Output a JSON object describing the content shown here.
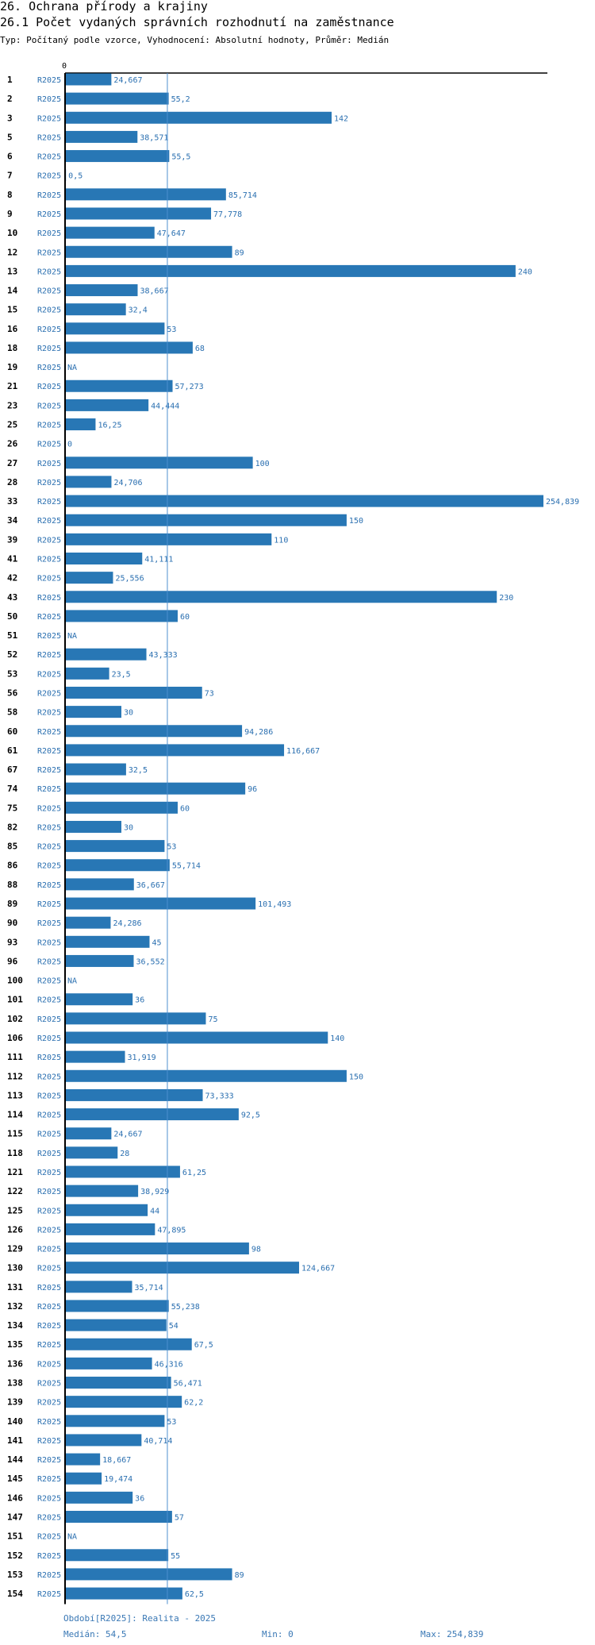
{
  "header": {
    "title": "26. Ochrana přírody a krajiny",
    "subtitle": "26.1 Počet vydaných správních rozhodnutí na zaměstnance",
    "type_line": "Typ: Počítaný podle vzorce, Vyhodnocení: Absolutní hodnoty, Průměr: Medián"
  },
  "chart_data": {
    "type": "bar",
    "orientation": "horizontal",
    "title": "26.1 Počet vydaných správních rozhodnutí na zaměstnance",
    "axis_zero_label": "0",
    "xlim": [
      0,
      254.839
    ],
    "median": 54.5,
    "series_label": "R2025",
    "colors": {
      "bar": "#2877b5",
      "label": "#2a6fb0",
      "median_line": "#4d8fcf"
    },
    "rows": [
      {
        "id": "1",
        "value": 24.667,
        "label": "24,667"
      },
      {
        "id": "2",
        "value": 55.2,
        "label": "55,2"
      },
      {
        "id": "3",
        "value": 142,
        "label": "142"
      },
      {
        "id": "5",
        "value": 38.571,
        "label": "38,571"
      },
      {
        "id": "6",
        "value": 55.5,
        "label": "55,5"
      },
      {
        "id": "7",
        "value": 0.5,
        "label": "0,5"
      },
      {
        "id": "8",
        "value": 85.714,
        "label": "85,714"
      },
      {
        "id": "9",
        "value": 77.778,
        "label": "77,778"
      },
      {
        "id": "10",
        "value": 47.647,
        "label": "47,647"
      },
      {
        "id": "12",
        "value": 89,
        "label": "89"
      },
      {
        "id": "13",
        "value": 240,
        "label": "240"
      },
      {
        "id": "14",
        "value": 38.667,
        "label": "38,667"
      },
      {
        "id": "15",
        "value": 32.4,
        "label": "32,4"
      },
      {
        "id": "16",
        "value": 53,
        "label": "53"
      },
      {
        "id": "18",
        "value": 68,
        "label": "68"
      },
      {
        "id": "19",
        "value": null,
        "label": "NA"
      },
      {
        "id": "21",
        "value": 57.273,
        "label": "57,273"
      },
      {
        "id": "23",
        "value": 44.444,
        "label": "44,444"
      },
      {
        "id": "25",
        "value": 16.25,
        "label": "16,25"
      },
      {
        "id": "26",
        "value": 0,
        "label": "0"
      },
      {
        "id": "27",
        "value": 100,
        "label": "100"
      },
      {
        "id": "28",
        "value": 24.706,
        "label": "24,706"
      },
      {
        "id": "33",
        "value": 254.839,
        "label": "254,839"
      },
      {
        "id": "34",
        "value": 150,
        "label": "150"
      },
      {
        "id": "39",
        "value": 110,
        "label": "110"
      },
      {
        "id": "41",
        "value": 41.111,
        "label": "41,111"
      },
      {
        "id": "42",
        "value": 25.556,
        "label": "25,556"
      },
      {
        "id": "43",
        "value": 230,
        "label": "230"
      },
      {
        "id": "50",
        "value": 60,
        "label": "60"
      },
      {
        "id": "51",
        "value": null,
        "label": "NA"
      },
      {
        "id": "52",
        "value": 43.333,
        "label": "43,333"
      },
      {
        "id": "53",
        "value": 23.5,
        "label": "23,5"
      },
      {
        "id": "56",
        "value": 73,
        "label": "73"
      },
      {
        "id": "58",
        "value": 30,
        "label": "30"
      },
      {
        "id": "60",
        "value": 94.286,
        "label": "94,286"
      },
      {
        "id": "61",
        "value": 116.667,
        "label": "116,667"
      },
      {
        "id": "67",
        "value": 32.5,
        "label": "32,5"
      },
      {
        "id": "74",
        "value": 96,
        "label": "96"
      },
      {
        "id": "75",
        "value": 60,
        "label": "60"
      },
      {
        "id": "82",
        "value": 30,
        "label": "30"
      },
      {
        "id": "85",
        "value": 53,
        "label": "53"
      },
      {
        "id": "86",
        "value": 55.714,
        "label": "55,714"
      },
      {
        "id": "88",
        "value": 36.667,
        "label": "36,667"
      },
      {
        "id": "89",
        "value": 101.493,
        "label": "101,493"
      },
      {
        "id": "90",
        "value": 24.286,
        "label": "24,286"
      },
      {
        "id": "93",
        "value": 45,
        "label": "45"
      },
      {
        "id": "96",
        "value": 36.552,
        "label": "36,552"
      },
      {
        "id": "100",
        "value": null,
        "label": "NA"
      },
      {
        "id": "101",
        "value": 36,
        "label": "36"
      },
      {
        "id": "102",
        "value": 75,
        "label": "75"
      },
      {
        "id": "106",
        "value": 140,
        "label": "140"
      },
      {
        "id": "111",
        "value": 31.919,
        "label": "31,919"
      },
      {
        "id": "112",
        "value": 150,
        "label": "150"
      },
      {
        "id": "113",
        "value": 73.333,
        "label": "73,333"
      },
      {
        "id": "114",
        "value": 92.5,
        "label": "92,5"
      },
      {
        "id": "115",
        "value": 24.667,
        "label": "24,667"
      },
      {
        "id": "118",
        "value": 28,
        "label": "28"
      },
      {
        "id": "121",
        "value": 61.25,
        "label": "61,25"
      },
      {
        "id": "122",
        "value": 38.929,
        "label": "38,929"
      },
      {
        "id": "125",
        "value": 44,
        "label": "44"
      },
      {
        "id": "126",
        "value": 47.895,
        "label": "47,895"
      },
      {
        "id": "129",
        "value": 98,
        "label": "98"
      },
      {
        "id": "130",
        "value": 124.667,
        "label": "124,667"
      },
      {
        "id": "131",
        "value": 35.714,
        "label": "35,714"
      },
      {
        "id": "132",
        "value": 55.238,
        "label": "55,238"
      },
      {
        "id": "134",
        "value": 54,
        "label": "54"
      },
      {
        "id": "135",
        "value": 67.5,
        "label": "67,5"
      },
      {
        "id": "136",
        "value": 46.316,
        "label": "46,316"
      },
      {
        "id": "138",
        "value": 56.471,
        "label": "56,471"
      },
      {
        "id": "139",
        "value": 62.2,
        "label": "62,2"
      },
      {
        "id": "140",
        "value": 53,
        "label": "53"
      },
      {
        "id": "141",
        "value": 40.714,
        "label": "40,714"
      },
      {
        "id": "144",
        "value": 18.667,
        "label": "18,667"
      },
      {
        "id": "145",
        "value": 19.474,
        "label": "19,474"
      },
      {
        "id": "146",
        "value": 36,
        "label": "36"
      },
      {
        "id": "147",
        "value": 57,
        "label": "57"
      },
      {
        "id": "151",
        "value": null,
        "label": "NA"
      },
      {
        "id": "152",
        "value": 55,
        "label": "55"
      },
      {
        "id": "153",
        "value": 89,
        "label": "89"
      },
      {
        "id": "154",
        "value": 62.5,
        "label": "62,5"
      }
    ]
  },
  "footer": {
    "period": "Období[R2025]: Realita - 2025",
    "median": "Medián: 54,5",
    "min": "Min: 0",
    "max": "Max: 254,839"
  }
}
